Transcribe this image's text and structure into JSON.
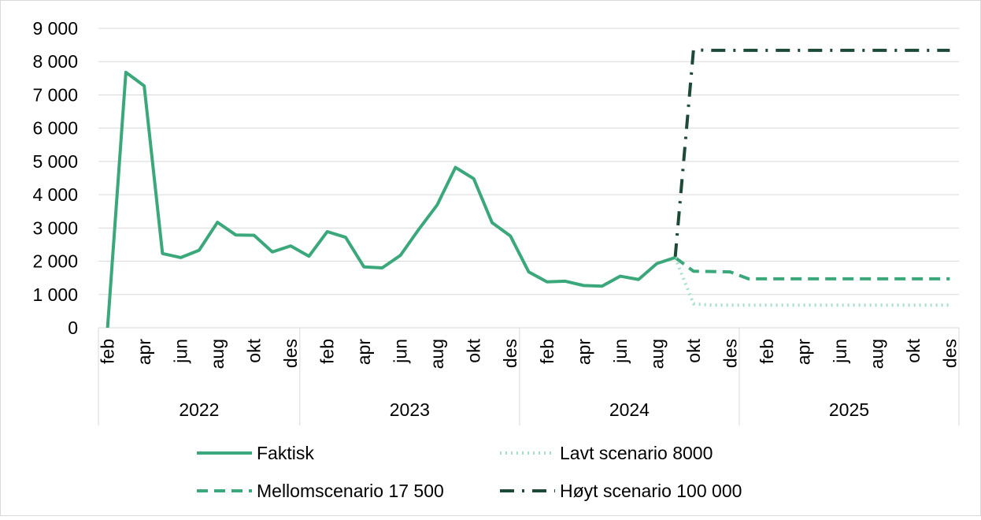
{
  "chart_data": {
    "type": "line",
    "category_groups": [
      {
        "label": "2022",
        "categories": [
          "feb",
          null,
          "apr",
          null,
          "jun",
          null,
          "aug",
          null,
          "okt",
          null,
          "des"
        ]
      },
      {
        "label": "2023",
        "categories": [
          null,
          "feb",
          null,
          "apr",
          null,
          "jun",
          null,
          "aug",
          null,
          "okt",
          null,
          "des"
        ]
      },
      {
        "label": "2024",
        "categories": [
          null,
          "feb",
          null,
          "apr",
          null,
          "jun",
          null,
          "aug",
          null,
          "okt",
          null,
          "des"
        ]
      },
      {
        "label": "2025",
        "categories": [
          null,
          "feb",
          null,
          "apr",
          null,
          "jun",
          null,
          "aug",
          null,
          "okt",
          null,
          "des"
        ]
      }
    ],
    "series": [
      {
        "name": "Faktisk",
        "color": "#3ba87b",
        "dash": "solid",
        "values": [
          0,
          7680,
          7270,
          2230,
          2110,
          2330,
          3170,
          2790,
          2780,
          2280,
          2460,
          2150,
          2890,
          2720,
          1830,
          1800,
          2180,
          2960,
          3690,
          4820,
          4480,
          3160,
          2760,
          1680,
          1380,
          1400,
          1270,
          1250,
          1550,
          1450,
          1930,
          2110,
          null,
          null,
          null,
          null,
          null,
          null,
          null,
          null,
          null,
          null,
          null,
          null,
          null,
          null,
          null
        ]
      },
      {
        "name": "Lavt scenario 8000",
        "color": "#a6dfc6",
        "dash": "dotted",
        "values": [
          null,
          null,
          null,
          null,
          null,
          null,
          null,
          null,
          null,
          null,
          null,
          null,
          null,
          null,
          null,
          null,
          null,
          null,
          null,
          null,
          null,
          null,
          null,
          null,
          null,
          null,
          null,
          null,
          null,
          null,
          null,
          2110,
          720,
          680,
          680,
          680,
          680,
          680,
          680,
          680,
          680,
          680,
          680,
          680,
          680,
          680,
          680
        ]
      },
      {
        "name": "Mellomscenario 17 500",
        "color": "#3ba87b",
        "dash": "dashed",
        "values": [
          null,
          null,
          null,
          null,
          null,
          null,
          null,
          null,
          null,
          null,
          null,
          null,
          null,
          null,
          null,
          null,
          null,
          null,
          null,
          null,
          null,
          null,
          null,
          null,
          null,
          null,
          null,
          null,
          null,
          null,
          null,
          2110,
          1700,
          1690,
          1680,
          1470,
          1470,
          1470,
          1470,
          1470,
          1470,
          1470,
          1470,
          1470,
          1470,
          1470,
          1470
        ]
      },
      {
        "name": "Høyt scenario 100 000",
        "color": "#1d4a37",
        "dash": "dashdot",
        "values": [
          null,
          null,
          null,
          null,
          null,
          null,
          null,
          null,
          null,
          null,
          null,
          null,
          null,
          null,
          null,
          null,
          null,
          null,
          null,
          null,
          null,
          null,
          null,
          null,
          null,
          null,
          null,
          null,
          null,
          null,
          null,
          2110,
          8350,
          8340,
          8340,
          8340,
          8340,
          8340,
          8340,
          8340,
          8340,
          8340,
          8340,
          8340,
          8340,
          8340,
          8340
        ]
      }
    ],
    "ylim": [
      0,
      9000
    ],
    "yticks": [
      0,
      {
        "value": 1000,
        "label": "1 000"
      },
      {
        "value": 2000,
        "label": "2 000"
      },
      {
        "value": 3000,
        "label": "3 000"
      },
      {
        "value": 4000,
        "label": "4 000"
      },
      {
        "value": 5000,
        "label": "5 000"
      },
      {
        "value": 6000,
        "label": "6 000"
      },
      {
        "value": 7000,
        "label": "7 000"
      },
      {
        "value": 8000,
        "label": "8 000"
      },
      {
        "value": 9000,
        "label": "9 000"
      }
    ],
    "grid": true,
    "legend": "bottom"
  }
}
